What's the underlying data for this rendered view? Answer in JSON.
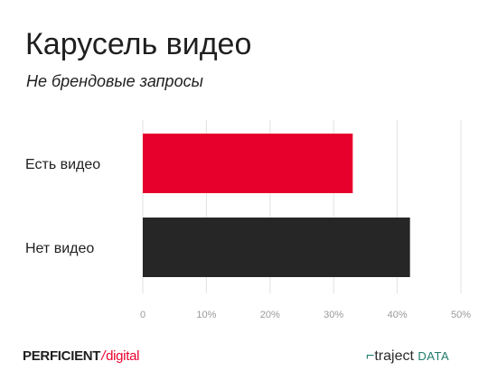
{
  "header": {
    "title": "Карусель видео",
    "subtitle": "Не брендовые запросы"
  },
  "chart_data": {
    "type": "bar",
    "orientation": "horizontal",
    "categories": [
      "Есть видео",
      "Нет видео"
    ],
    "values": [
      33,
      42
    ],
    "colors": [
      "#e8002d",
      "#262626"
    ],
    "xlim": [
      0,
      50
    ],
    "xticks": [
      "0",
      "10%",
      "20%",
      "30%",
      "40%",
      "50%"
    ],
    "grid": true
  },
  "footer": {
    "left_logo": {
      "part1": "PERFICIENT",
      "part2": "/",
      "part3": "digital"
    },
    "right_logo": {
      "mark": "⌐",
      "part1": "traject",
      "part2": "DATA"
    }
  }
}
